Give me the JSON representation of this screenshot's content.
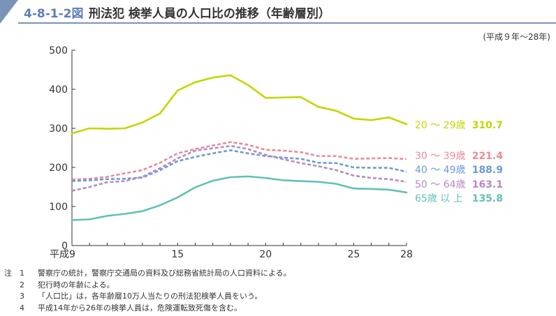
{
  "header": {
    "figure_number": "4-8-1-2図",
    "title": "刑法犯 検挙人員の人口比の推移（年齢層別）",
    "period": "(平成９年～28年)"
  },
  "chart_data": {
    "type": "line",
    "x": [
      9,
      10,
      11,
      12,
      13,
      14,
      15,
      16,
      17,
      18,
      19,
      20,
      21,
      22,
      23,
      24,
      25,
      26,
      27,
      28
    ],
    "x_tick_labels": [
      {
        "x": 9,
        "label": "平成9"
      },
      {
        "x": 15,
        "label": "15"
      },
      {
        "x": 20,
        "label": "20"
      },
      {
        "x": 25,
        "label": "25"
      },
      {
        "x": 28,
        "label": "28"
      }
    ],
    "xlim": [
      9,
      28
    ],
    "ylim": [
      0,
      500
    ],
    "y_ticks": [
      0,
      100,
      200,
      300,
      400,
      500
    ],
    "grid": false,
    "series": [
      {
        "name": "20 ～ 29歳",
        "end_value_label": "310.7",
        "color": "#c3d600",
        "dashed": false,
        "values": [
          287,
          300,
          299,
          300,
          315,
          338,
          397,
          418,
          430,
          436,
          411,
          378,
          379,
          380,
          355,
          345,
          325,
          321,
          328,
          310.7
        ]
      },
      {
        "name": "30 ～ 39歳",
        "end_value_label": "221.4",
        "color": "#e88a98",
        "dashed": true,
        "values": [
          169,
          171,
          176,
          185,
          193,
          212,
          236,
          247,
          256,
          265,
          258,
          245,
          243,
          239,
          229,
          229,
          222,
          223,
          224,
          221.4
        ]
      },
      {
        "name": "40 ～ 49歳",
        "end_value_label": "188.9",
        "color": "#6c9bd2",
        "dashed": true,
        "values": [
          165,
          167,
          170,
          171,
          174,
          193,
          216,
          227,
          236,
          244,
          236,
          229,
          225,
          222,
          212,
          211,
          200,
          199,
          199,
          188.9
        ]
      },
      {
        "name": "50 ～ 64歳",
        "end_value_label": "163.1",
        "color": "#b889c4",
        "dashed": true,
        "values": [
          140,
          150,
          162,
          165,
          176,
          198,
          223,
          243,
          249,
          255,
          247,
          232,
          221,
          211,
          203,
          193,
          179,
          173,
          170,
          163.1
        ]
      },
      {
        "name": "65歳 以 上",
        "end_value_label": "135.8",
        "color": "#62c1b5",
        "dashed": false,
        "values": [
          65,
          67,
          76,
          81,
          88,
          103,
          123,
          149,
          166,
          175,
          177,
          173,
          167,
          165,
          163,
          158,
          146,
          145,
          143,
          135.8
        ]
      }
    ]
  },
  "notes": [
    {
      "head": "注",
      "num": "1",
      "text": "警察庁の統計，警察庁交通局の資料及び総務省統計局の人口資料による。"
    },
    {
      "head": "",
      "num": "2",
      "text": "犯行時の年齢による。"
    },
    {
      "head": "",
      "num": "3",
      "text": "「人口比」は，各年齢層10万人当たりの刑法犯検挙人員をいう。"
    },
    {
      "head": "",
      "num": "4",
      "text": "平成14年から26年の検挙人員は，危険運転致死傷を含む。"
    }
  ]
}
